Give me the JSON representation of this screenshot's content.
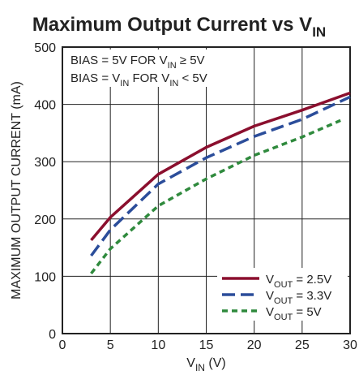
{
  "chart_data": {
    "type": "line",
    "title": "Maximum Output Current vs V",
    "title_sub": "IN",
    "xlabel": "V",
    "xlabel_sub": "IN",
    "xlabel_unit": " (V)",
    "ylabel": "MAXIMUM OUTPUT CURRENT (mA)",
    "xlim": [
      0,
      30
    ],
    "ylim": [
      0,
      500
    ],
    "x_ticks": [
      "0",
      "5",
      "10",
      "15",
      "20",
      "25",
      "30"
    ],
    "y_ticks": [
      "0",
      "100",
      "200",
      "300",
      "400",
      "500"
    ],
    "grid": true,
    "annotations": {
      "line1_prefix": "BIAS = 5V FOR V",
      "line1_sub": "IN",
      "line1_suffix": " ≥ 5V",
      "line2_prefix": "BIAS = V",
      "line2_sub1": "IN",
      "line2_mid": " FOR V",
      "line2_sub2": "IN",
      "line2_suffix": " < 5V"
    },
    "legend_position": "bottom-right",
    "series": [
      {
        "name_prefix": "V",
        "name_sub": "OUT",
        "name_suffix": " = 2.5V",
        "color": "#8b0f2e",
        "dash": "solid",
        "x": [
          3,
          5,
          10,
          15,
          20,
          25,
          30
        ],
        "y": [
          163,
          203,
          278,
          325,
          362,
          390,
          420
        ]
      },
      {
        "name_prefix": "V",
        "name_sub": "OUT",
        "name_suffix": " = 3.3V",
        "color": "#2b4d9a",
        "dash": "long",
        "x": [
          3,
          5,
          10,
          15,
          20,
          25,
          30
        ],
        "y": [
          136,
          181,
          261,
          307,
          344,
          374,
          413
        ]
      },
      {
        "name_prefix": "V",
        "name_sub": "OUT",
        "name_suffix": " = 5V",
        "color": "#2f8a3d",
        "dash": "short",
        "x": [
          3,
          5,
          10,
          15,
          20,
          25,
          29
        ],
        "y": [
          105,
          148,
          223,
          270,
          311,
          343,
          372
        ]
      }
    ]
  }
}
